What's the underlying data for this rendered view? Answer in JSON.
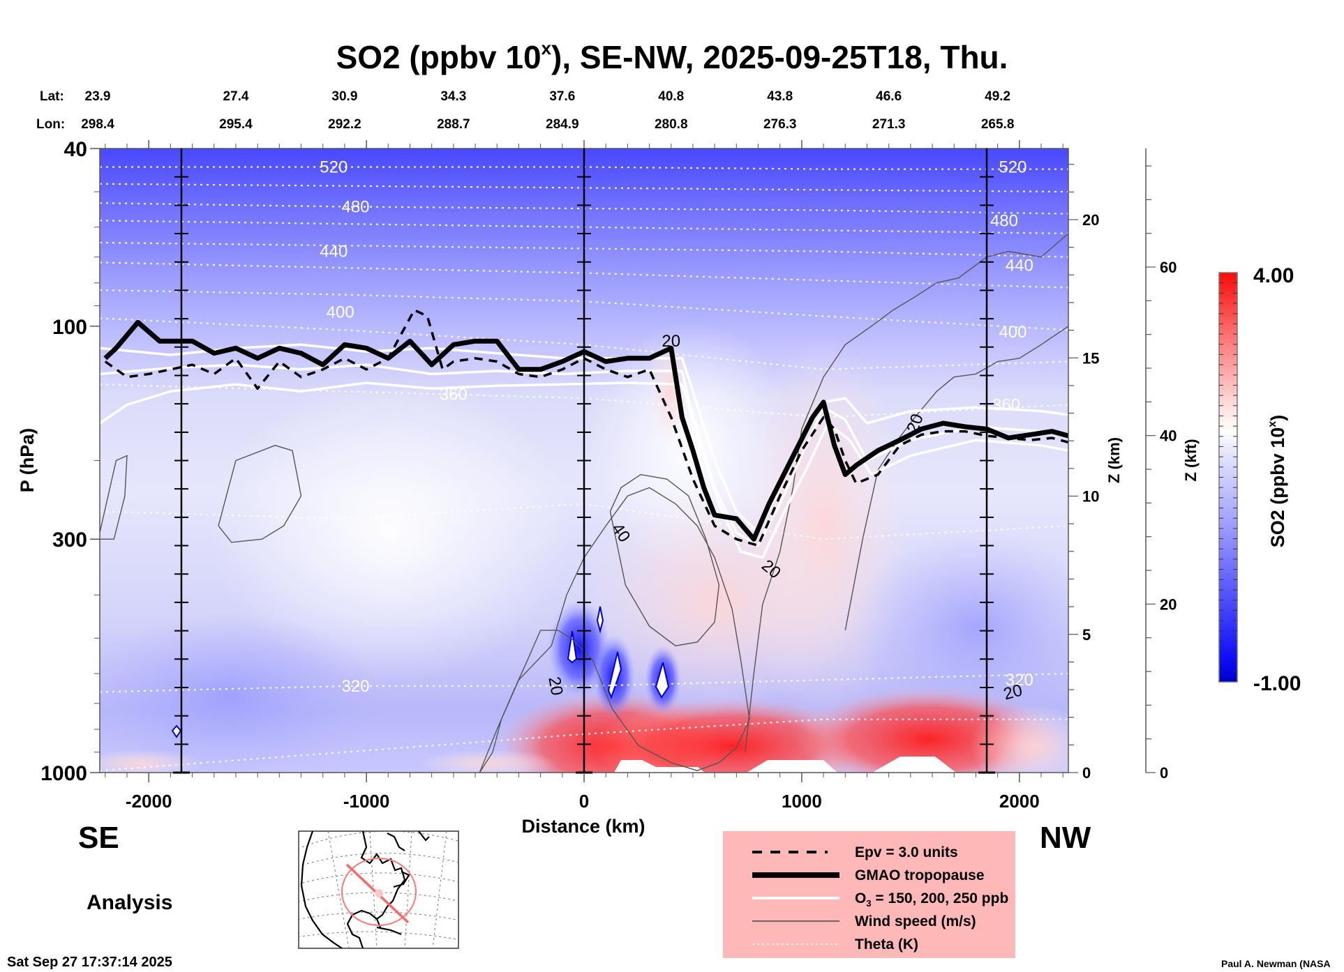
{
  "chart_data": {
    "type": "heatmap",
    "title": "SO2 (ppbv 10^x), SE-NW, 2025-09-25T18, Thu.",
    "title_parts": {
      "main": "SO2 (ppbv 10",
      "sup": "x",
      "rest": "), SE-NW, 2025-09-25T18, Thu."
    },
    "lat_label": "Lat:",
    "lon_label": "Lon:",
    "lat_values": [
      "23.9",
      "27.4",
      "30.9",
      "34.3",
      "37.6",
      "40.8",
      "43.8",
      "46.6",
      "49.2"
    ],
    "lon_values": [
      "298.4",
      "295.4",
      "292.2",
      "288.7",
      "284.9",
      "280.8",
      "276.3",
      "271.3",
      "265.8"
    ],
    "latlon_distance_km": [
      -2100,
      -1600,
      -1100,
      -600,
      -100,
      400,
      900,
      1400,
      1900
    ],
    "xlabel": "Distance (km)",
    "ylabel": "P (hPa)",
    "xlim": [
      -2225,
      2225
    ],
    "ylim_hpa": [
      1000,
      40
    ],
    "y_scale": "log",
    "x_ticks": [
      -2000,
      -1000,
      0,
      1000,
      2000
    ],
    "y_ticks": [
      {
        "value": 40,
        "label": "40"
      },
      {
        "value": 100,
        "label": "100"
      },
      {
        "value": 300,
        "label": "300"
      },
      {
        "value": 1000,
        "label": "1000"
      }
    ],
    "right_axis_km": {
      "label": "Z (km)",
      "ticks": [
        0,
        5,
        10,
        15,
        20
      ],
      "range": [
        0,
        22.5
      ]
    },
    "right_axis_kft": {
      "label": "Z (kft)",
      "ticks": [
        0,
        20,
        40,
        60
      ],
      "range": [
        0,
        74
      ]
    },
    "vertical_markers_km": [
      -1850,
      0,
      1850
    ],
    "colorbar": {
      "label_main": "SO2 (ppbv 10",
      "label_sup": "x",
      "label_end": ")",
      "min": -1.0,
      "max": 4.0,
      "min_label": "-1.00",
      "max_label": "4.00",
      "levels": 40,
      "low_color": "#0000cc",
      "mid_color": "#ffffff",
      "high_color": "#ff0000"
    },
    "direction_left": "SE",
    "direction_right": "NW",
    "theta_labels": [
      {
        "text": "520",
        "x": -1150,
        "p": 44
      },
      {
        "text": "480",
        "x": -1050,
        "p": 54
      },
      {
        "text": "440",
        "x": -1150,
        "p": 68
      },
      {
        "text": "400",
        "x": -1120,
        "p": 93
      },
      {
        "text": "360",
        "x": -600,
        "p": 142
      },
      {
        "text": "320",
        "x": -1050,
        "p": 640
      },
      {
        "text": "520",
        "x": 1970,
        "p": 44
      },
      {
        "text": "480",
        "x": 1930,
        "p": 58
      },
      {
        "text": "440",
        "x": 2000,
        "p": 73
      },
      {
        "text": "400",
        "x": 1970,
        "p": 103
      },
      {
        "text": "360",
        "x": 1940,
        "p": 150
      },
      {
        "text": "320",
        "x": 2000,
        "p": 620
      }
    ],
    "theta_lines": [
      {
        "K": 520,
        "p": [
          44,
          44,
          44,
          44.5,
          44.5
        ]
      },
      {
        "K": 500,
        "p": [
          48,
          48.5,
          49,
          49.5,
          50
        ]
      },
      {
        "K": 480,
        "p": [
          53,
          54,
          54.5,
          55,
          56
        ]
      },
      {
        "K": 460,
        "p": [
          58,
          59,
          60,
          61,
          62
        ]
      },
      {
        "K": 440,
        "p": [
          65,
          66,
          67,
          68,
          70
        ]
      },
      {
        "K": 420,
        "p": [
          72,
          74,
          76,
          79,
          82
        ]
      },
      {
        "K": 400,
        "p": [
          83,
          85,
          88,
          95,
          102
        ]
      },
      {
        "K": 380,
        "p": [
          96,
          102,
          110,
          125,
          120
        ]
      },
      {
        "K": 360,
        "p": [
          135,
          140,
          145,
          160,
          150
        ]
      },
      {
        "K": 340,
        "p": [
          260,
          270,
          250,
          300,
          280
        ]
      },
      {
        "K": 320,
        "p": [
          660,
          640,
          640,
          620,
          600
        ]
      },
      {
        "K": 300,
        "p": [
          990,
          900,
          820,
          760,
          760
        ]
      }
    ],
    "wind_labels": [
      {
        "text": "20",
        "x": 400,
        "p": 108,
        "rot": 0
      },
      {
        "text": "40",
        "x": 170,
        "p": 290,
        "rot": 55
      },
      {
        "text": "20",
        "x": 860,
        "p": 350,
        "rot": 40
      },
      {
        "text": "20",
        "x": -130,
        "p": 640,
        "rot": 80
      },
      {
        "text": "20",
        "x": 1970,
        "p": 660,
        "rot": -15
      },
      {
        "text": "20",
        "x": 1520,
        "p": 165,
        "rot": -70
      }
    ],
    "series": [
      {
        "name": "GMAO tropopause",
        "style": "thick-solid",
        "x": [
          -2200,
          -2150,
          -2050,
          -1950,
          -1850,
          -1800,
          -1700,
          -1600,
          -1500,
          -1400,
          -1300,
          -1200,
          -1100,
          -1000,
          -900,
          -800,
          -700,
          -600,
          -500,
          -400,
          -300,
          -200,
          -100,
          0,
          100,
          200,
          300,
          400,
          450,
          500,
          550,
          600,
          700,
          780,
          850,
          950,
          1050,
          1100,
          1150,
          1200,
          1250,
          1350,
          1450,
          1550,
          1650,
          1750,
          1850,
          1950,
          2050,
          2150,
          2225
        ],
        "p": [
          118,
          112,
          98,
          108,
          108,
          108,
          115,
          112,
          118,
          112,
          115,
          122,
          110,
          112,
          118,
          108,
          122,
          110,
          108,
          108,
          125,
          125,
          120,
          114,
          120,
          118,
          118,
          112,
          160,
          190,
          230,
          265,
          270,
          300,
          250,
          200,
          160,
          148,
          185,
          215,
          205,
          190,
          180,
          170,
          165,
          168,
          170,
          178,
          175,
          172,
          176
        ]
      },
      {
        "name": "Epv = 3.0 units",
        "style": "dashed",
        "x": [
          -2200,
          -2100,
          -2000,
          -1900,
          -1800,
          -1700,
          -1600,
          -1500,
          -1400,
          -1300,
          -1200,
          -1100,
          -1000,
          -900,
          -780,
          -720,
          -650,
          -600,
          -500,
          -400,
          -300,
          -200,
          -100,
          0,
          100,
          200,
          300,
          400,
          500,
          600,
          700,
          800,
          900,
          1000,
          1100,
          1150,
          1200,
          1250,
          1350,
          1450,
          1550,
          1650,
          1750,
          1850,
          1950,
          2050,
          2150,
          2225
        ],
        "p": [
          120,
          130,
          128,
          125,
          122,
          128,
          118,
          138,
          120,
          130,
          125,
          118,
          125,
          118,
          92,
          95,
          125,
          120,
          118,
          120,
          128,
          130,
          125,
          118,
          125,
          130,
          125,
          160,
          220,
          280,
          300,
          310,
          240,
          190,
          160,
          170,
          200,
          225,
          215,
          185,
          175,
          172,
          172,
          176,
          178,
          180,
          178,
          182
        ]
      },
      {
        "name": "O3 = 150 ppb",
        "style": "white-solid",
        "x": [
          -2225,
          -1900,
          -1600,
          -1300,
          -1000,
          -700,
          -400,
          -100,
          200,
          450,
          500,
          600,
          700,
          800,
          900,
          1000,
          1100,
          1200,
          1300,
          1500,
          1800,
          2100,
          2225
        ],
        "p": [
          112,
          116,
          112,
          110,
          114,
          112,
          115,
          118,
          118,
          118,
          140,
          200,
          260,
          290,
          230,
          180,
          148,
          145,
          165,
          155,
          152,
          155,
          158
        ]
      },
      {
        "name": "O3 = 200 ppb",
        "style": "white-solid",
        "x": [
          -2225,
          -1900,
          -1600,
          -1300,
          -1000,
          -700,
          -400,
          -100,
          200,
          450,
          500,
          600,
          700,
          800,
          900,
          1000,
          1100,
          1200,
          1300,
          1500,
          1800,
          2100,
          2225
        ],
        "p": [
          128,
          124,
          122,
          125,
          122,
          128,
          126,
          128,
          126,
          126,
          160,
          230,
          290,
          310,
          250,
          195,
          152,
          162,
          200,
          180,
          168,
          172,
          175
        ]
      },
      {
        "name": "O3 = 250 ppb",
        "style": "white-solid",
        "x": [
          -2225,
          -2100,
          -1900,
          -1600,
          -1300,
          -1000,
          -700,
          -400,
          -100,
          200,
          450,
          520,
          620,
          720,
          820,
          920,
          1020,
          1120,
          1220,
          1320,
          1500,
          1800,
          2100,
          2225
        ],
        "p": [
          165,
          150,
          140,
          135,
          140,
          134,
          138,
          136,
          135,
          134,
          135,
          175,
          250,
          320,
          330,
          260,
          210,
          165,
          180,
          215,
          195,
          180,
          185,
          190
        ]
      }
    ],
    "wind_contours": [
      {
        "value": 20,
        "x": [
          -480,
          -420,
          -380,
          -300,
          -150,
          -80,
          0,
          100,
          200,
          300,
          420,
          520,
          600,
          680,
          720,
          760,
          700,
          620,
          520,
          400,
          250,
          130,
          40,
          -60,
          -120,
          -200,
          -260,
          -320,
          -400,
          -480
        ],
        "p": [
          1000,
          900,
          760,
          620,
          520,
          400,
          330,
          280,
          240,
          230,
          250,
          280,
          330,
          430,
          560,
          760,
          880,
          950,
          990,
          950,
          870,
          720,
          560,
          500,
          480,
          480,
          560,
          650,
          800,
          1000
        ]
      },
      {
        "value": 40,
        "x": [
          120,
          170,
          260,
          380,
          480,
          560,
          620,
          600,
          520,
          420,
          300,
          190,
          120
        ],
        "p": [
          260,
          230,
          215,
          220,
          240,
          300,
          380,
          460,
          510,
          520,
          470,
          380,
          260
        ]
      },
      {
        "value": 20,
        "x": [
          -1680,
          -1600,
          -1420,
          -1340,
          -1300,
          -1380,
          -1480,
          -1620,
          -1680
        ],
        "p": [
          280,
          200,
          185,
          190,
          240,
          280,
          300,
          305,
          280
        ]
      },
      {
        "value": 20,
        "x": [
          -2225,
          -2150,
          -2100,
          -2110,
          -2160,
          -2225
        ],
        "p": [
          290,
          200,
          195,
          240,
          300,
          300
        ]
      },
      {
        "value": 20,
        "x": [
          740,
          780,
          820,
          900,
          960,
          1000,
          1100,
          1200,
          1320,
          1420,
          1520,
          1620,
          1720,
          1850,
          1950,
          2100,
          2225
        ],
        "p": [
          900,
          600,
          420,
          320,
          230,
          170,
          130,
          110,
          100,
          92,
          86,
          80,
          78,
          70,
          68,
          70,
          62
        ]
      },
      {
        "value": 20,
        "x": [
          1200,
          1280,
          1350,
          1440,
          1520,
          1620,
          1700,
          1800,
          1900,
          2000,
          2100,
          2225
        ],
        "p": [
          480,
          300,
          210,
          180,
          160,
          140,
          130,
          128,
          120,
          118,
          110,
          100
        ]
      }
    ]
  },
  "header": {
    "timestamp": "Sat Sep 27 17:37:14 2025",
    "analysis_label": "Analysis",
    "credit": "Paul A. Newman (NASA"
  },
  "legend": {
    "background": "#ffb8b8",
    "items": [
      {
        "label": "Epv = 3.0 units",
        "style": "dashed"
      },
      {
        "label": "GMAO tropopause",
        "style": "thick"
      },
      {
        "label_main": "O",
        "label_sub": "3",
        "label_rest": " = 150, 200, 250 ppb",
        "style": "white"
      },
      {
        "label": "Wind speed (m/s)",
        "style": "thin"
      },
      {
        "label": "Theta (K)",
        "style": "dotted"
      }
    ]
  },
  "map_inset": {
    "description": "North America orthographic map with cross-section track",
    "track_color": "#ff6b6b"
  }
}
